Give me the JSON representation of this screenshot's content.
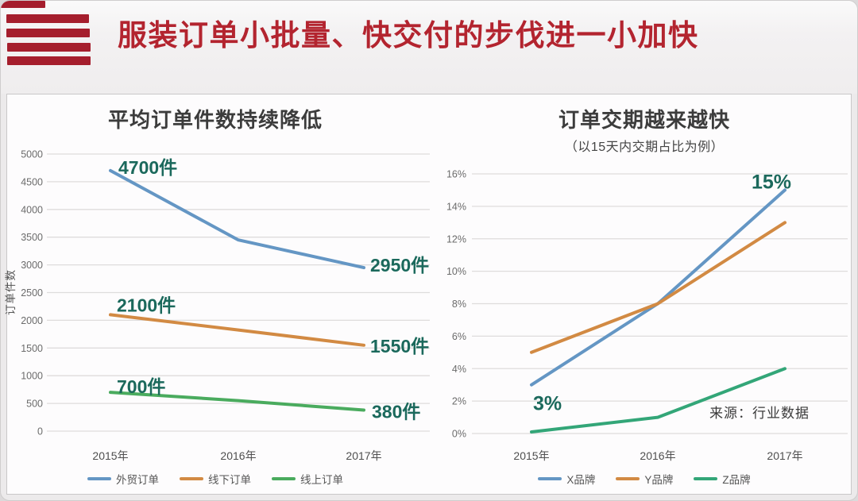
{
  "page": {
    "title": "服装订单小批量、快交付的步伐进一小加快",
    "logo": "red-stripes-flag",
    "source_note": "来源：行业数据"
  },
  "colors": {
    "title_red": "#b3242f",
    "logo_red": "#a51e2d",
    "annotation_teal": "#1b695c",
    "grid": "#dedcdc",
    "axis_text": "#6b6b6b",
    "year_text": "#4f4f4f",
    "blue": "#6496c4",
    "orange": "#d28a43",
    "green_left": "#4aab5e",
    "green_right": "#33a678"
  },
  "chart_data": [
    {
      "type": "line",
      "title": "平均订单件数持续降低",
      "ylabel": "订单件数",
      "xlabel": "",
      "categories": [
        "2015年",
        "2016年",
        "2017年"
      ],
      "ylim": [
        0,
        5000
      ],
      "ytick_values": [
        5000,
        4500,
        4000,
        3500,
        3000,
        2500,
        2000,
        1500,
        1000,
        500,
        0
      ],
      "ytick_labels": [
        "5000",
        "4500",
        "4000",
        "3500",
        "3000",
        "2500",
        "2000",
        "1500",
        "1000",
        "500",
        "0"
      ],
      "grid": true,
      "legend_position": "bottom",
      "series": [
        {
          "name": "外贸订单",
          "color": "#6496c4",
          "values": [
            4700,
            3450,
            2950
          ],
          "annotations": [
            {
              "point": 0,
              "text": "4700件",
              "dx": 10,
              "dy": 4
            },
            {
              "point": 2,
              "text": "2950件",
              "dx": 8,
              "dy": 5
            }
          ]
        },
        {
          "name": "线下订单",
          "color": "#d28a43",
          "values": [
            2100,
            1825,
            1550
          ],
          "annotations": [
            {
              "point": 0,
              "text": "2100件",
              "dx": 8,
              "dy": -4
            },
            {
              "point": 2,
              "text": "1550件",
              "dx": 8,
              "dy": 9
            }
          ]
        },
        {
          "name": "线上订单",
          "color": "#4aab5e",
          "values": [
            700,
            550,
            380
          ],
          "annotations": [
            {
              "point": 0,
              "text": "700件",
              "dx": 8,
              "dy": 1
            },
            {
              "point": 2,
              "text": "380件",
              "dx": 10,
              "dy": 10
            }
          ]
        }
      ]
    },
    {
      "type": "line",
      "title": "订单交期越来越快",
      "subtitle": "（以15天内交期占比为例）",
      "ylabel": "",
      "xlabel": "",
      "categories": [
        "2015年",
        "2016年",
        "2017年"
      ],
      "ylim": [
        0,
        16
      ],
      "ytick_values": [
        16,
        14,
        12,
        10,
        8,
        6,
        4,
        2,
        0
      ],
      "ytick_labels": [
        "16%",
        "14%",
        "12%",
        "10%",
        "8%",
        "6%",
        "4%",
        "2%",
        "0%"
      ],
      "grid": true,
      "legend_position": "bottom",
      "series": [
        {
          "name": "X品牌",
          "color": "#6496c4",
          "values": [
            3,
            8,
            15
          ],
          "annotations": [
            {
              "point": 0,
              "text": "3%",
              "dx": 2,
              "dy": 32
            },
            {
              "point": 2,
              "text": "15%",
              "dx": -42,
              "dy": -2
            }
          ]
        },
        {
          "name": "Y品牌",
          "color": "#d28a43",
          "values": [
            5,
            8,
            13
          ],
          "annotations": []
        },
        {
          "name": "Z品牌",
          "color": "#33a678",
          "values": [
            0.1,
            1,
            4
          ],
          "annotations": []
        }
      ]
    }
  ]
}
